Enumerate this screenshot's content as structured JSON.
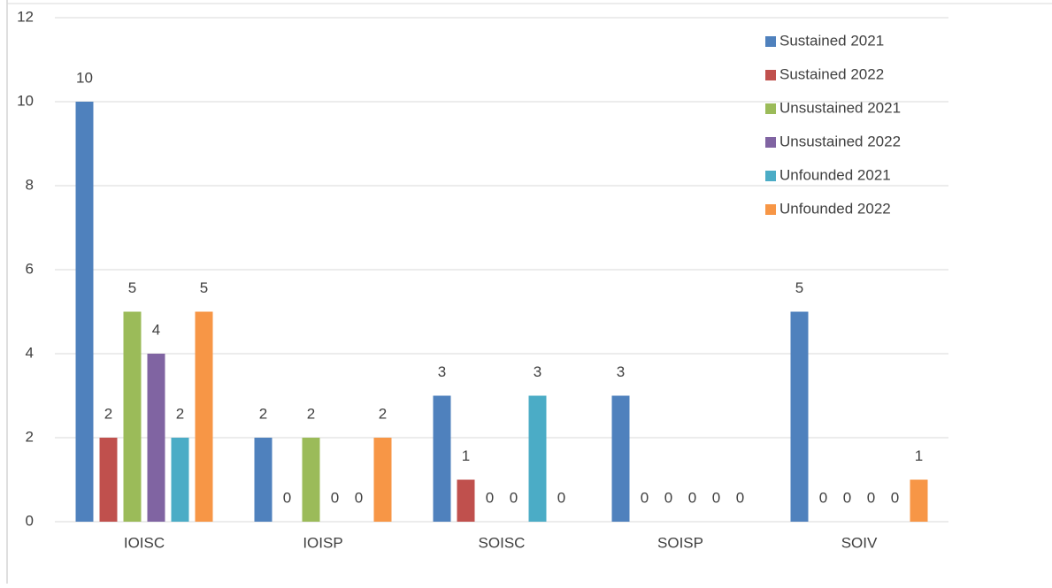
{
  "chart_data": {
    "type": "bar",
    "categories": [
      "IOISC",
      "IOISP",
      "SOISC",
      "SOISP",
      "SOIV"
    ],
    "series": [
      {
        "name": "Sustained 2021",
        "color": "#4f81bd",
        "values": [
          10,
          2,
          3,
          3,
          5
        ]
      },
      {
        "name": "Sustained 2022",
        "color": "#c0504d",
        "values": [
          2,
          0,
          1,
          0,
          0
        ]
      },
      {
        "name": "Unsustained 2021",
        "color": "#9bbb59",
        "values": [
          5,
          2,
          0,
          0,
          0
        ]
      },
      {
        "name": "Unsustained 2022",
        "color": "#8064a2",
        "values": [
          4,
          0,
          0,
          0,
          0
        ]
      },
      {
        "name": "Unfounded 2021",
        "color": "#4bacc6",
        "values": [
          2,
          0,
          3,
          0,
          0
        ]
      },
      {
        "name": "Unfounded 2022",
        "color": "#f79646",
        "values": [
          5,
          2,
          0,
          0,
          1
        ]
      }
    ],
    "ylim": [
      0,
      12
    ],
    "yticks": [
      0,
      2,
      4,
      6,
      8,
      10,
      12
    ],
    "grid": true,
    "legend": "top-right"
  }
}
